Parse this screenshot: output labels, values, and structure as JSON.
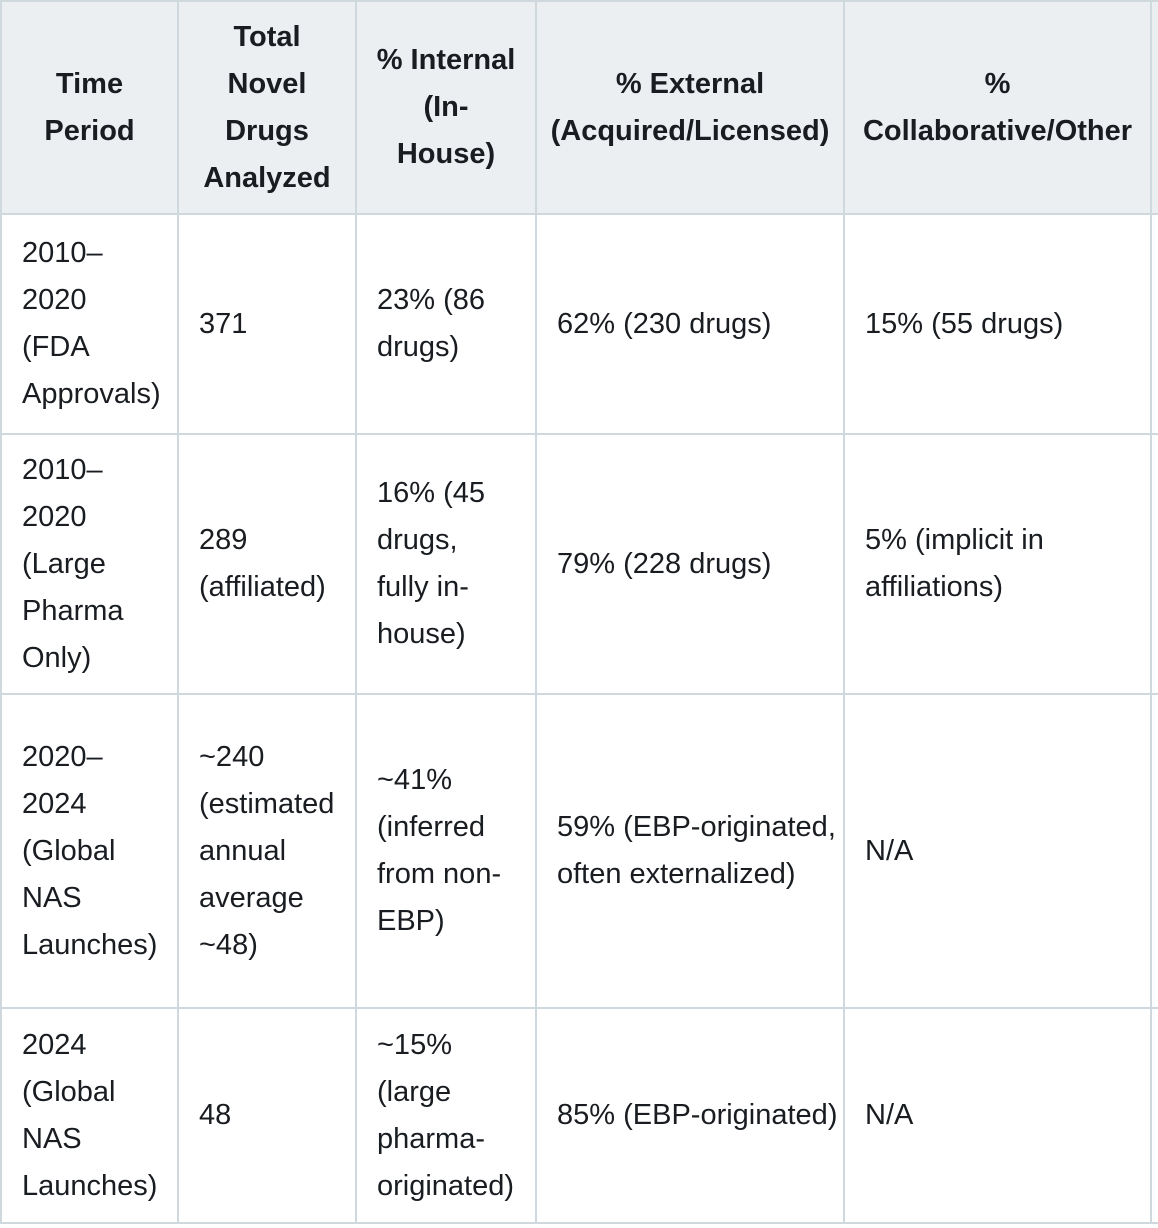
{
  "colors": {
    "header_background": "#eceff1",
    "grid_border": "#cfd8dc",
    "text": "#191c20",
    "body_background": "#ffffff"
  },
  "table": {
    "headers": [
      "Time\nPeriod",
      "Total\nNovel\nDrugs\nAnalyzed",
      "% Internal\n(In-\nHouse)",
      "% External\n(Acquired/Licensed)",
      "%\nCollaborative/Other"
    ],
    "rows": [
      {
        "cells": [
          "2010–\n2020\n(FDA\nApprovals)",
          "371",
          "23% (86\ndrugs)",
          "62% (230 drugs)",
          "15% (55 drugs)"
        ]
      },
      {
        "cells": [
          "2010–\n2020\n(Large\nPharma\nOnly)",
          "289\n(affiliated)",
          "16% (45\ndrugs,\nfully in-\nhouse)",
          "79% (228 drugs)",
          "5% (implicit in\naffiliations)"
        ]
      },
      {
        "cells": [
          "2020–\n2024\n(Global\nNAS\nLaunches)",
          "~240\n(estimated\nannual\naverage\n~48)",
          "~41%\n(inferred\nfrom non-\nEBP)",
          "59% (EBP-originated,\noften externalized)",
          "N/A"
        ]
      },
      {
        "cells": [
          "2024\n(Global\nNAS\nLaunches)",
          "48",
          "~15%\n(large\npharma-\noriginated)",
          "85% (EBP-originated)",
          "N/A"
        ]
      }
    ]
  },
  "chart_data": {
    "type": "table",
    "columns": [
      "Time Period",
      "Total Novel Drugs Analyzed",
      "% Internal (In-House)",
      "% External (Acquired/Licensed)",
      "% Collaborative/Other"
    ],
    "rows": [
      [
        "2010–2020 (FDA Approvals)",
        "371",
        "23% (86 drugs)",
        "62% (230 drugs)",
        "15% (55 drugs)"
      ],
      [
        "2010–2020 (Large Pharma Only)",
        "289 (affiliated)",
        "16% (45 drugs, fully in-house)",
        "79% (228 drugs)",
        "5% (implicit in affiliations)"
      ],
      [
        "2020–2024 (Global NAS Launches)",
        "~240 (estimated annual average ~48)",
        "~41% (inferred from non-EBP)",
        "59% (EBP-originated, often externalized)",
        "N/A"
      ],
      [
        "2024 (Global NAS Launches)",
        "48",
        "~15% (large pharma-originated)",
        "85% (EBP-originated)",
        "N/A"
      ]
    ]
  }
}
